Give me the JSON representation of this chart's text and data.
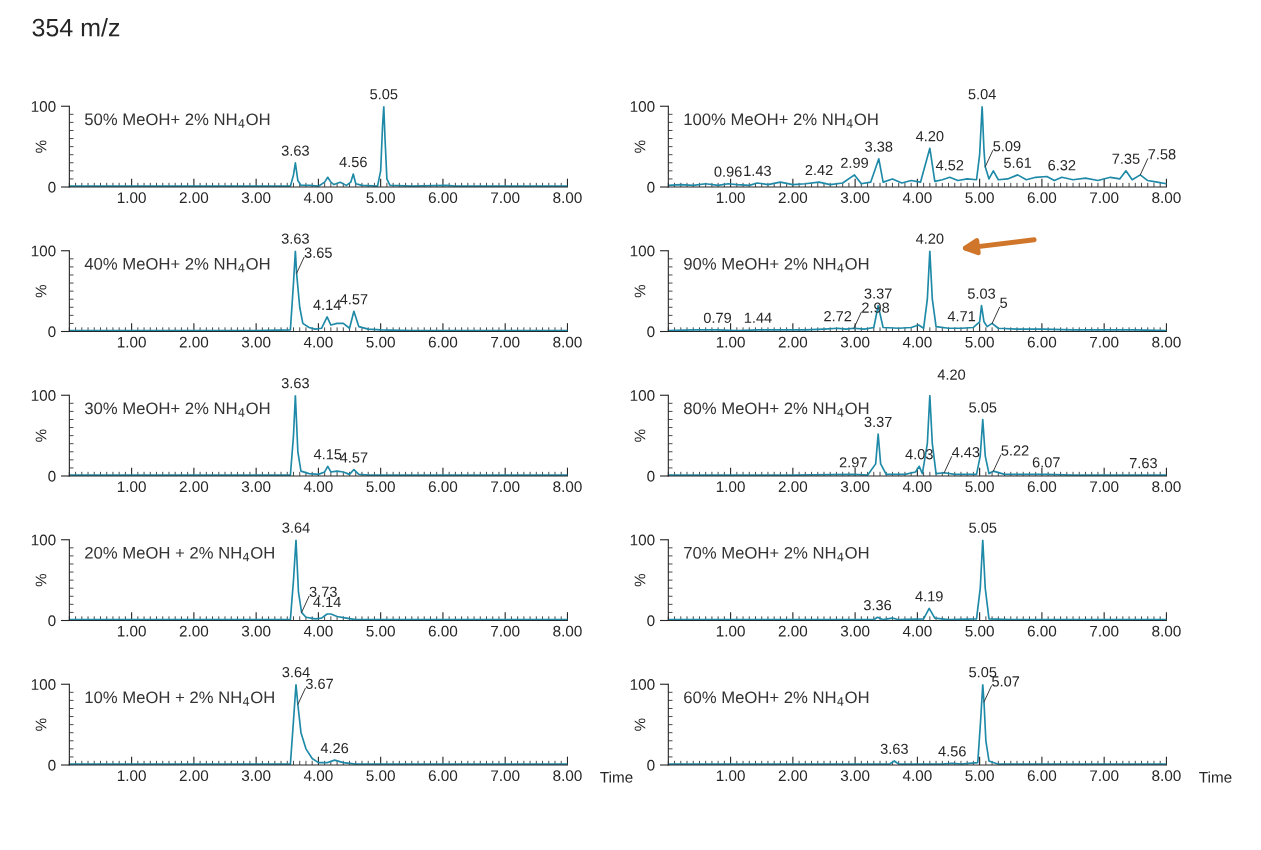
{
  "chart_data": [
    {
      "type": "line",
      "title": "354 m/z",
      "subtitle": "50% MeOH+ 2% NH$_{4}$OH",
      "ylabel": "%",
      "xlim": [
        0,
        8
      ],
      "ylim": [
        0,
        100
      ],
      "yticks": [
        0,
        100
      ],
      "xticks": [
        {
          "value": 1,
          "label": "1.00"
        },
        {
          "value": 2,
          "label": "2.00"
        },
        {
          "value": 3,
          "label": "3.00"
        },
        {
          "value": 4,
          "label": "4.00"
        },
        {
          "value": 5,
          "label": "5.00"
        },
        {
          "value": 6,
          "label": "6.00"
        },
        {
          "value": 7,
          "label": "7.00"
        },
        {
          "value": 8,
          "label": "8.00"
        }
      ],
      "series": [
        {
          "color": "#1f8aa8",
          "x": [
            0,
            1,
            2,
            3,
            3.55,
            3.6,
            3.63,
            3.67,
            3.72,
            3.85,
            4.0,
            4.1,
            4.15,
            4.2,
            4.25,
            4.35,
            4.45,
            4.52,
            4.56,
            4.6,
            4.7,
            4.95,
            5.0,
            5.03,
            5.05,
            5.07,
            5.1,
            5.15,
            5.5,
            6.05,
            6.2,
            7,
            8
          ],
          "values": [
            1,
            1,
            1,
            1,
            1,
            15,
            30,
            8,
            2,
            2,
            1,
            6,
            12,
            6,
            3,
            6,
            2,
            6,
            16,
            4,
            2,
            1,
            20,
            75,
            100,
            60,
            10,
            2,
            1,
            2,
            1,
            1,
            1
          ]
        }
      ],
      "annotations": [
        {
          "text": "3.63",
          "x": 3.63,
          "y": 30
        },
        {
          "text": "4.56",
          "x": 4.56,
          "y": 16
        },
        {
          "text": "5.05",
          "x": 5.05,
          "y": 100
        }
      ]
    },
    {
      "type": "line",
      "subtitle": "100% MeOH+ 2% NH$_{4}$OH",
      "ylabel": "%",
      "xlim": [
        0,
        8
      ],
      "ylim": [
        0,
        100
      ],
      "yticks": [
        0,
        100
      ],
      "xticks": [
        {
          "value": 1,
          "label": "1.00"
        },
        {
          "value": 2,
          "label": "2.00"
        },
        {
          "value": 3,
          "label": "3.00"
        },
        {
          "value": 4,
          "label": "4.00"
        },
        {
          "value": 5,
          "label": "5.00"
        },
        {
          "value": 6,
          "label": "6.00"
        },
        {
          "value": 7,
          "label": "7.00"
        },
        {
          "value": 8,
          "label": "8.00"
        }
      ],
      "series": [
        {
          "color": "#1f8aa8",
          "x": [
            0,
            0.2,
            0.4,
            0.6,
            0.8,
            0.96,
            1.1,
            1.3,
            1.43,
            1.6,
            1.8,
            2.0,
            2.2,
            2.42,
            2.6,
            2.8,
            2.99,
            3.1,
            3.25,
            3.38,
            3.45,
            3.6,
            3.75,
            3.9,
            4.05,
            4.2,
            4.28,
            4.4,
            4.52,
            4.65,
            4.8,
            4.95,
            5.0,
            5.04,
            5.07,
            5.09,
            5.15,
            5.22,
            5.3,
            5.45,
            5.61,
            5.75,
            5.9,
            6.08,
            6.2,
            6.32,
            6.5,
            6.7,
            6.9,
            7.1,
            7.25,
            7.35,
            7.45,
            7.58,
            7.7,
            7.85,
            8.0
          ],
          "values": [
            2,
            3,
            2,
            4,
            2,
            4,
            3,
            2,
            5,
            3,
            6,
            3,
            4,
            6,
            3,
            5,
            15,
            4,
            6,
            35,
            6,
            10,
            5,
            8,
            6,
            48,
            7,
            9,
            12,
            8,
            10,
            9,
            40,
            100,
            45,
            25,
            10,
            20,
            9,
            10,
            15,
            9,
            12,
            13,
            8,
            12,
            9,
            11,
            8,
            12,
            10,
            20,
            9,
            15,
            8,
            6,
            4
          ]
        }
      ],
      "annotations": [
        {
          "text": "0.96",
          "x": 0.96,
          "y": 4
        },
        {
          "text": "1.43",
          "x": 1.43,
          "y": 5
        },
        {
          "text": "2.42",
          "x": 2.42,
          "y": 6
        },
        {
          "text": "2.99",
          "x": 2.99,
          "y": 15
        },
        {
          "text": "3.38",
          "x": 3.38,
          "y": 35
        },
        {
          "text": "4.20",
          "x": 4.2,
          "y": 48
        },
        {
          "text": "4.52",
          "x": 4.52,
          "y": 12
        },
        {
          "text": "5.04",
          "x": 5.04,
          "y": 100
        },
        {
          "text": "5.09",
          "x": 5.09,
          "y": 25
        },
        {
          "text": "5.61",
          "x": 5.61,
          "y": 15
        },
        {
          "text": "6.32",
          "x": 6.32,
          "y": 12
        },
        {
          "text": "7.35",
          "x": 7.35,
          "y": 20
        },
        {
          "text": "7.58",
          "x": 7.58,
          "y": 15
        }
      ]
    },
    {
      "type": "line",
      "subtitle": "40% MeOH+ 2% NH$_{4}$OH",
      "ylabel": "%",
      "xlim": [
        0,
        8
      ],
      "ylim": [
        0,
        100
      ],
      "yticks": [
        0,
        100
      ],
      "xticks": [
        {
          "value": 1,
          "label": "1.00"
        },
        {
          "value": 2,
          "label": "2.00"
        },
        {
          "value": 3,
          "label": "3.00"
        },
        {
          "value": 4,
          "label": "4.00"
        },
        {
          "value": 5,
          "label": "5.00"
        },
        {
          "value": 6,
          "label": "6.00"
        },
        {
          "value": 7,
          "label": "7.00"
        },
        {
          "value": 8,
          "label": "8.00"
        }
      ],
      "series": [
        {
          "color": "#1f8aa8",
          "x": [
            0,
            1,
            2,
            3,
            3.55,
            3.6,
            3.63,
            3.65,
            3.7,
            3.75,
            3.85,
            3.95,
            4.05,
            4.14,
            4.2,
            4.3,
            4.4,
            4.5,
            4.57,
            4.65,
            4.8,
            5.0,
            5.5,
            6,
            7,
            8
          ],
          "values": [
            1,
            1,
            1,
            1,
            2,
            60,
            100,
            72,
            30,
            10,
            5,
            3,
            4,
            18,
            8,
            10,
            10,
            4,
            25,
            6,
            3,
            2,
            1,
            1,
            1,
            1
          ]
        }
      ],
      "annotations": [
        {
          "text": "3.63",
          "x": 3.63,
          "y": 100
        },
        {
          "text": "3.65",
          "x": 3.65,
          "y": 72
        },
        {
          "text": "4.14",
          "x": 4.14,
          "y": 18
        },
        {
          "text": "4.57",
          "x": 4.57,
          "y": 25
        }
      ]
    },
    {
      "type": "line",
      "subtitle": "90% MeOH+ 2% NH$_{4}$OH",
      "ylabel": "%",
      "xlim": [
        0,
        8
      ],
      "ylim": [
        0,
        100
      ],
      "yticks": [
        0,
        100
      ],
      "xticks": [
        {
          "value": 1,
          "label": "1.00"
        },
        {
          "value": 2,
          "label": "2.00"
        },
        {
          "value": 3,
          "label": "3.00"
        },
        {
          "value": 4,
          "label": "4.00"
        },
        {
          "value": 5,
          "label": "5.00"
        },
        {
          "value": 6,
          "label": "6.00"
        },
        {
          "value": 7,
          "label": "7.00"
        },
        {
          "value": 8,
          "label": "8.00"
        }
      ],
      "series": [
        {
          "color": "#1f8aa8",
          "x": [
            0,
            0.4,
            0.79,
            1.1,
            1.44,
            1.8,
            2.2,
            2.5,
            2.72,
            2.85,
            2.98,
            3.15,
            3.3,
            3.37,
            3.45,
            3.7,
            3.9,
            4.02,
            4.1,
            4.16,
            4.2,
            4.24,
            4.3,
            4.5,
            4.71,
            4.9,
            5.0,
            5.03,
            5.07,
            5.12,
            5.2,
            5.3,
            5.6,
            6.0,
            6.5,
            7.0,
            7.5,
            8.0
          ],
          "values": [
            1,
            2,
            2,
            1,
            2,
            2,
            2,
            3,
            4,
            3,
            4,
            3,
            5,
            32,
            5,
            4,
            5,
            8,
            4,
            40,
            100,
            40,
            6,
            4,
            4,
            5,
            12,
            32,
            12,
            6,
            10,
            4,
            3,
            3,
            2,
            2,
            2,
            1
          ]
        }
      ],
      "annotations": [
        {
          "text": "0.79",
          "x": 0.79,
          "y": 2
        },
        {
          "text": "1.44",
          "x": 1.44,
          "y": 2
        },
        {
          "text": "2.72",
          "x": 2.72,
          "y": 4
        },
        {
          "text": "2.98",
          "x": 2.98,
          "y": 4
        },
        {
          "text": "3.37",
          "x": 3.37,
          "y": 32
        },
        {
          "text": "4.20",
          "x": 4.2,
          "y": 100
        },
        {
          "text": "4.71",
          "x": 4.71,
          "y": 4
        },
        {
          "text": "5.03",
          "x": 5.03,
          "y": 32
        },
        {
          "text": "5",
          "x": 5.2,
          "y": 10
        }
      ]
    },
    {
      "type": "line",
      "subtitle": "30% MeOH+ 2% NH$_{4}$OH",
      "ylabel": "%",
      "xlim": [
        0,
        8
      ],
      "ylim": [
        0,
        100
      ],
      "yticks": [
        0,
        100
      ],
      "xticks": [
        {
          "value": 1,
          "label": "1.00"
        },
        {
          "value": 2,
          "label": "2.00"
        },
        {
          "value": 3,
          "label": "3.00"
        },
        {
          "value": 4,
          "label": "4.00"
        },
        {
          "value": 5,
          "label": "5.00"
        },
        {
          "value": 6,
          "label": "6.00"
        },
        {
          "value": 7,
          "label": "7.00"
        },
        {
          "value": 8,
          "label": "8.00"
        }
      ],
      "series": [
        {
          "color": "#1f8aa8",
          "x": [
            0,
            1,
            2,
            3,
            3.55,
            3.6,
            3.63,
            3.67,
            3.72,
            3.85,
            4.0,
            4.1,
            4.15,
            4.2,
            4.3,
            4.4,
            4.5,
            4.57,
            4.65,
            4.8,
            5.5,
            6,
            7,
            8
          ],
          "values": [
            1,
            1,
            1,
            1,
            1,
            50,
            100,
            30,
            6,
            3,
            2,
            5,
            12,
            5,
            6,
            5,
            2,
            8,
            2,
            1,
            1,
            1,
            1,
            1
          ]
        }
      ],
      "annotations": [
        {
          "text": "3.63",
          "x": 3.63,
          "y": 100
        },
        {
          "text": "4.15",
          "x": 4.15,
          "y": 12
        },
        {
          "text": "4.57",
          "x": 4.57,
          "y": 8
        }
      ]
    },
    {
      "type": "line",
      "subtitle": "80% MeOH+ 2% NH$_{4}$OH",
      "ylabel": "%",
      "xlim": [
        0,
        8
      ],
      "ylim": [
        0,
        100
      ],
      "yticks": [
        0,
        100
      ],
      "xticks": [
        {
          "value": 1,
          "label": "1.00"
        },
        {
          "value": 2,
          "label": "2.00"
        },
        {
          "value": 3,
          "label": "3.00"
        },
        {
          "value": 4,
          "label": "4.00"
        },
        {
          "value": 5,
          "label": "5.00"
        },
        {
          "value": 6,
          "label": "6.00"
        },
        {
          "value": 7,
          "label": "7.00"
        },
        {
          "value": 8,
          "label": "8.00"
        }
      ],
      "series": [
        {
          "color": "#1f8aa8",
          "x": [
            0,
            1,
            2,
            2.97,
            3.2,
            3.33,
            3.37,
            3.41,
            3.5,
            3.8,
            3.97,
            4.03,
            4.08,
            4.16,
            4.2,
            4.24,
            4.3,
            4.43,
            4.6,
            4.95,
            5.01,
            5.05,
            5.09,
            5.15,
            5.22,
            5.4,
            6.07,
            6.5,
            7.63,
            8
          ],
          "values": [
            1,
            1,
            1,
            2,
            1,
            15,
            52,
            15,
            2,
            2,
            5,
            12,
            3,
            40,
            100,
            40,
            3,
            4,
            2,
            2,
            25,
            70,
            25,
            3,
            6,
            2,
            2,
            1,
            1,
            1
          ]
        }
      ],
      "annotations": [
        {
          "text": "2.97",
          "x": 2.97,
          "y": 2
        },
        {
          "text": "3.37",
          "x": 3.37,
          "y": 52
        },
        {
          "text": "4.03",
          "x": 4.03,
          "y": 12
        },
        {
          "text": "4.20",
          "x": 4.2,
          "y": 100
        },
        {
          "text": "4.43",
          "x": 4.43,
          "y": 4
        },
        {
          "text": "5.05",
          "x": 5.05,
          "y": 70
        },
        {
          "text": "5.22",
          "x": 5.22,
          "y": 6
        },
        {
          "text": "6.07",
          "x": 6.07,
          "y": 2
        },
        {
          "text": "7.63",
          "x": 7.63,
          "y": 1
        }
      ]
    },
    {
      "type": "line",
      "subtitle": "20% MeOH + 2% NH$_{4}$OH",
      "ylabel": "%",
      "xlim": [
        0,
        8
      ],
      "ylim": [
        0,
        100
      ],
      "yticks": [
        0,
        100
      ],
      "xticks": [
        {
          "value": 1,
          "label": "1.00"
        },
        {
          "value": 2,
          "label": "2.00"
        },
        {
          "value": 3,
          "label": "3.00"
        },
        {
          "value": 4,
          "label": "4.00"
        },
        {
          "value": 5,
          "label": "5.00"
        },
        {
          "value": 6,
          "label": "6.00"
        },
        {
          "value": 7,
          "label": "7.00"
        },
        {
          "value": 8,
          "label": "8.00"
        }
      ],
      "series": [
        {
          "color": "#1f8aa8",
          "x": [
            0,
            1,
            2,
            3,
            3.55,
            3.6,
            3.64,
            3.68,
            3.73,
            3.8,
            3.95,
            4.05,
            4.14,
            4.2,
            4.3,
            4.45,
            4.6,
            5,
            6,
            7,
            8
          ],
          "values": [
            1,
            1,
            1,
            1,
            1,
            50,
            100,
            35,
            10,
            4,
            2,
            3,
            8,
            8,
            5,
            3,
            1,
            1,
            1,
            1,
            1
          ]
        }
      ],
      "annotations": [
        {
          "text": "3.64",
          "x": 3.64,
          "y": 100
        },
        {
          "text": "3.73",
          "x": 3.73,
          "y": 10
        },
        {
          "text": "4.14",
          "x": 4.14,
          "y": 8
        }
      ]
    },
    {
      "type": "line",
      "subtitle": "70% MeOH+ 2% NH$_{4}$OH",
      "ylabel": "%",
      "xlim": [
        0,
        8
      ],
      "ylim": [
        0,
        100
      ],
      "yticks": [
        0,
        100
      ],
      "xticks": [
        {
          "value": 1,
          "label": "1.00"
        },
        {
          "value": 2,
          "label": "2.00"
        },
        {
          "value": 3,
          "label": "3.00"
        },
        {
          "value": 4,
          "label": "4.00"
        },
        {
          "value": 5,
          "label": "5.00"
        },
        {
          "value": 6,
          "label": "6.00"
        },
        {
          "value": 7,
          "label": "7.00"
        },
        {
          "value": 8,
          "label": "8.00"
        }
      ],
      "series": [
        {
          "color": "#1f8aa8",
          "x": [
            0,
            1,
            2,
            3,
            3.3,
            3.36,
            3.45,
            3.6,
            3.7,
            4.1,
            4.19,
            4.28,
            4.5,
            4.95,
            5.01,
            5.05,
            5.09,
            5.15,
            5.5,
            6,
            7,
            8
          ],
          "values": [
            1,
            1,
            1,
            1,
            1,
            4,
            1,
            3,
            1,
            2,
            15,
            3,
            1,
            2,
            40,
            100,
            40,
            2,
            1,
            1,
            1,
            1
          ]
        }
      ],
      "annotations": [
        {
          "text": "3.36",
          "x": 3.36,
          "y": 4
        },
        {
          "text": "4.19",
          "x": 4.19,
          "y": 15
        },
        {
          "text": "5.05",
          "x": 5.05,
          "y": 100
        }
      ]
    },
    {
      "type": "line",
      "subtitle": "10% MeOH + 2% NH$_{4}$OH",
      "ylabel": "%",
      "xlabel": "Time",
      "xlim": [
        0,
        8
      ],
      "ylim": [
        0,
        100
      ],
      "yticks": [
        0,
        100
      ],
      "xticks": [
        {
          "value": 1,
          "label": "1.00"
        },
        {
          "value": 2,
          "label": "2.00"
        },
        {
          "value": 3,
          "label": "3.00"
        },
        {
          "value": 4,
          "label": "4.00"
        },
        {
          "value": 5,
          "label": "5.00"
        },
        {
          "value": 6,
          "label": "6.00"
        },
        {
          "value": 7,
          "label": "7.00"
        },
        {
          "value": 8,
          "label": "8.00"
        }
      ],
      "series": [
        {
          "color": "#1f8aa8",
          "x": [
            0,
            1,
            2,
            3,
            3.55,
            3.6,
            3.64,
            3.67,
            3.72,
            3.8,
            3.9,
            4.0,
            4.15,
            4.26,
            4.4,
            4.6,
            5,
            6,
            7,
            8
          ],
          "values": [
            1,
            1,
            1,
            1,
            1,
            55,
            100,
            75,
            40,
            20,
            8,
            3,
            3,
            6,
            3,
            1,
            1,
            1,
            1,
            1
          ]
        }
      ],
      "annotations": [
        {
          "text": "3.64",
          "x": 3.64,
          "y": 100
        },
        {
          "text": "3.67",
          "x": 3.67,
          "y": 75
        },
        {
          "text": "4.26",
          "x": 4.26,
          "y": 6
        }
      ]
    },
    {
      "type": "line",
      "subtitle": "60% MeOH+ 2% NH$_{4}$OH",
      "ylabel": "%",
      "xlabel": "Time",
      "xlim": [
        0,
        8
      ],
      "ylim": [
        0,
        100
      ],
      "yticks": [
        0,
        100
      ],
      "xticks": [
        {
          "value": 1,
          "label": "1.00"
        },
        {
          "value": 2,
          "label": "2.00"
        },
        {
          "value": 3,
          "label": "3.00"
        },
        {
          "value": 4,
          "label": "4.00"
        },
        {
          "value": 5,
          "label": "5.00"
        },
        {
          "value": 6,
          "label": "6.00"
        },
        {
          "value": 7,
          "label": "7.00"
        },
        {
          "value": 8,
          "label": "8.00"
        }
      ],
      "series": [
        {
          "color": "#1f8aa8",
          "x": [
            0,
            1,
            2,
            3,
            3.55,
            3.63,
            3.7,
            4.4,
            4.56,
            4.7,
            4.97,
            5.02,
            5.05,
            5.07,
            5.1,
            5.15,
            5.3,
            6,
            7,
            8
          ],
          "values": [
            1,
            1,
            1,
            1,
            1,
            5,
            1,
            1,
            2,
            1,
            3,
            60,
            100,
            78,
            30,
            5,
            1,
            1,
            1,
            1
          ]
        }
      ],
      "annotations": [
        {
          "text": "3.63",
          "x": 3.63,
          "y": 5
        },
        {
          "text": "4.56",
          "x": 4.56,
          "y": 2
        },
        {
          "text": "5.05",
          "x": 5.05,
          "y": 100
        },
        {
          "text": "5.07",
          "x": 5.07,
          "y": 78
        }
      ]
    }
  ]
}
